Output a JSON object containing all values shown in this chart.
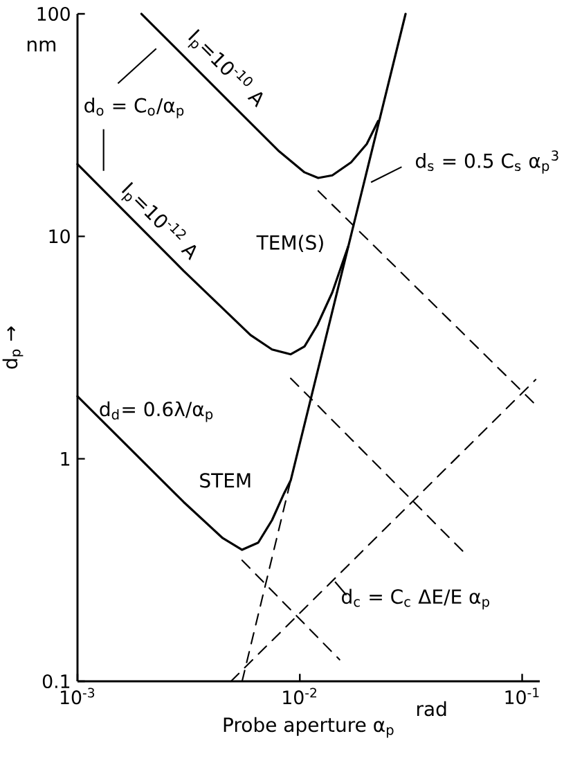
{
  "chart_data": {
    "type": "line",
    "log": "xy",
    "xlabel": "Probe aperture α$_{p}$",
    "ylabel": "d$_{p}$ →",
    "xlim": [
      0.001,
      0.12
    ],
    "ylim": [
      0.1,
      100
    ],
    "xticks": [
      {
        "value": 0.001,
        "label": "10$^{-3}$"
      },
      {
        "value": 0.01,
        "label": "10$^{-2}$"
      },
      {
        "value": 0.1,
        "label": "10$^{-1}$"
      }
    ],
    "yticks": [
      0.1,
      1,
      10,
      100
    ],
    "series": [
      {
        "color": "#000000",
        "line_style": "solid",
        "x": [
          0.00194,
          0.005,
          0.008,
          0.0105,
          0.0121,
          0.014,
          0.017,
          0.02,
          0.0225
        ],
        "values": [
          100,
          38.8,
          24.3,
          19.4,
          18.3,
          18.8,
          21.5,
          26,
          33
        ]
      },
      {
        "color": "#000000",
        "line_style": "solid",
        "x": [
          0.001,
          0.003,
          0.006,
          0.0075,
          0.0091,
          0.0105,
          0.012,
          0.014,
          0.0165
        ],
        "values": [
          21.1,
          7.0,
          3.6,
          3.1,
          2.95,
          3.2,
          4.0,
          5.6,
          9.0
        ]
      },
      {
        "color": "#000000",
        "line_style": "solid",
        "x": [
          0.001,
          0.003,
          0.0045,
          0.0055,
          0.0065,
          0.0075,
          0.0085,
          0.0091,
          0.0299
        ],
        "values": [
          1.91,
          0.64,
          0.44,
          0.39,
          0.42,
          0.53,
          0.7,
          0.8,
          100
        ]
      },
      {
        "color": "#000000",
        "line_style": "dashed",
        "x": [
          0.0055,
          0.0091
        ],
        "values": [
          0.1,
          0.8
        ]
      },
      {
        "color": "#000000",
        "line_style": "dashed",
        "x": [
          0.0121,
          0.115
        ],
        "values": [
          16.0,
          1.75
        ]
      },
      {
        "color": "#000000",
        "line_style": "dashed",
        "x": [
          0.0091,
          0.0547
        ],
        "values": [
          2.3,
          0.38
        ]
      },
      {
        "color": "#000000",
        "line_style": "dashed",
        "x": [
          0.0055,
          0.0151
        ],
        "values": [
          0.35,
          0.125
        ]
      },
      {
        "color": "#000000",
        "line_style": "dashed",
        "x": [
          0.0049,
          0.115
        ],
        "values": [
          0.1,
          2.27
        ]
      }
    ],
    "annotations": [
      "I$_{p}$=10$^{-10}$ A",
      "I$_{p}$=10$^{-12}$ A",
      "d$_{o}$ = C$_{o}$/α$_{p}$",
      "d$_{d}$= 0.6λ/α$_{p}$",
      "d$_{s}$ = 0.5 C$_{s}$ α$_{p}$$^{3}$",
      "d$_{c}$ = C$_{c}$ ΔE/E α$_{p}$",
      "TEM(S)",
      "STEM",
      "nm",
      "rad"
    ]
  }
}
